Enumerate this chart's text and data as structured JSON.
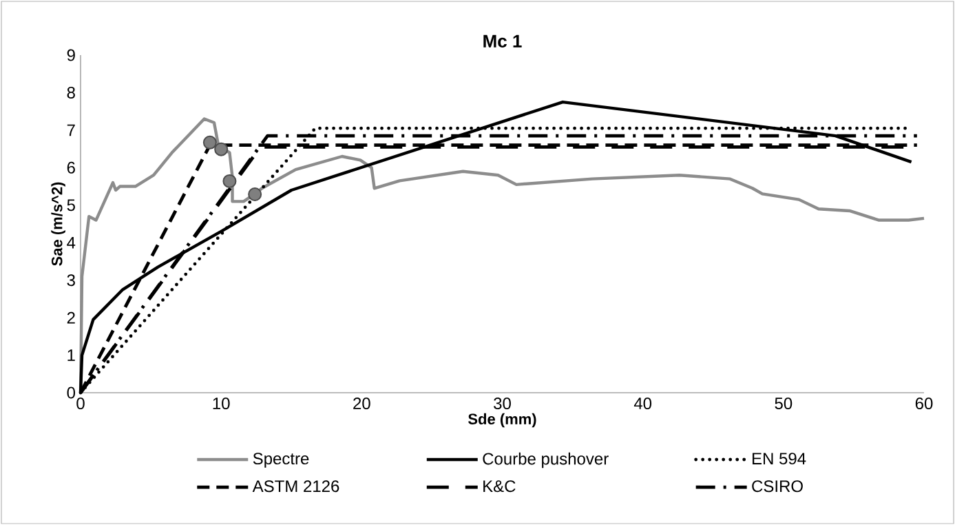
{
  "chart_data": {
    "type": "line",
    "title": "Mc 1",
    "xlabel": "Sde (mm)",
    "ylabel": "Sae (m/s^2)",
    "xlim": [
      0,
      60
    ],
    "ylim": [
      0,
      9
    ],
    "xticks": [
      0,
      10,
      20,
      30,
      40,
      50,
      60
    ],
    "yticks": [
      0,
      1,
      2,
      3,
      4,
      5,
      6,
      7,
      8,
      9
    ],
    "legend": "bottom",
    "grid": false,
    "series": [
      {
        "name": "Spectre",
        "color": "#8c8c8c",
        "line_style": "solid",
        "x": [
          0,
          0.1,
          0.6,
          1.1,
          2.3,
          2.5,
          2.8,
          3.9,
          5.2,
          6.5,
          8.8,
          9.5,
          9.8,
          10.6,
          10.8,
          10.8,
          11.6,
          12.4,
          12.9,
          15.3,
          18.6,
          19.9,
          20.7,
          20.9,
          22.7,
          27.2,
          29.7,
          31.0,
          36.4,
          42.6,
          46.2,
          47.8,
          48.5,
          51.1,
          52.5,
          54.7,
          56.8,
          58.9,
          60
        ],
        "values": [
          0,
          3.1,
          4.7,
          4.6,
          5.6,
          5.4,
          5.5,
          5.5,
          5.8,
          6.4,
          7.3,
          7.2,
          6.6,
          6.4,
          5.75,
          5.1,
          5.1,
          5.3,
          5.45,
          5.95,
          6.3,
          6.2,
          6.0,
          5.45,
          5.65,
          5.9,
          5.8,
          5.55,
          5.7,
          5.8,
          5.7,
          5.45,
          5.3,
          5.15,
          4.9,
          4.85,
          4.6,
          4.6,
          4.65
        ]
      },
      {
        "name": "Courbe pushover",
        "color": "#000000",
        "line_style": "solid",
        "x": [
          0,
          0.1,
          0.9,
          3,
          5.5,
          10,
          15,
          34.3,
          53.7,
          59.1
        ],
        "values": [
          0,
          1.0,
          1.95,
          2.75,
          3.35,
          4.3,
          5.4,
          7.75,
          6.85,
          6.15
        ]
      },
      {
        "name": "EN 594",
        "color": "#000000",
        "line_style": "dotted",
        "x": [
          0,
          16.7,
          59
        ],
        "values": [
          0,
          7.05,
          7.05
        ]
      },
      {
        "name": "ASTM 2126",
        "color": "#000000",
        "line_style": "dashed",
        "x": [
          0,
          9.2,
          59.5
        ],
        "values": [
          0,
          6.6,
          6.6
        ]
      },
      {
        "name": "K&C",
        "color": "#000000",
        "line_style": "long dashed",
        "x": [
          0,
          12.8,
          59.5
        ],
        "values": [
          0,
          6.55,
          6.55
        ]
      },
      {
        "name": "CSIRO",
        "color": "#000000",
        "line_style": "dash dot",
        "x": [
          0,
          13.3,
          59.5
        ],
        "values": [
          0,
          6.85,
          6.85
        ]
      },
      {
        "type": "scatter",
        "marker": "circle",
        "color": "#7f7f7f",
        "x": [
          9.2,
          10.0,
          10.6,
          12.4
        ],
        "values": [
          6.67,
          6.49,
          5.64,
          5.29
        ]
      }
    ]
  }
}
